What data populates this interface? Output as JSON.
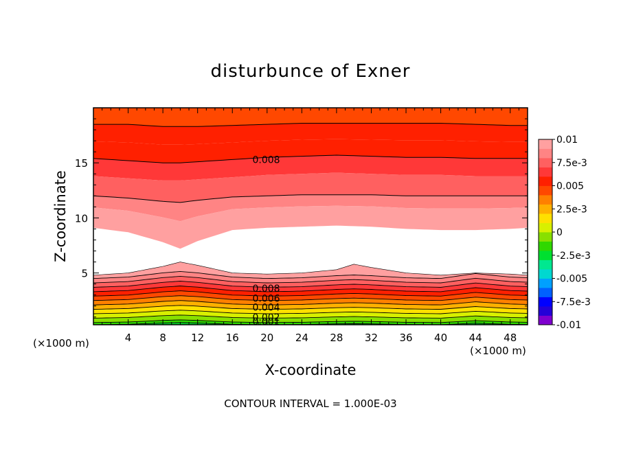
{
  "chart_data": {
    "type": "contour",
    "title": "disturbunce of Exner",
    "xlabel": "X-coordinate",
    "ylabel": "Z-coordinate",
    "x_unit_label_left": "(×1000 m)",
    "x_unit_label_right": "(×1000 m)",
    "xlim": [
      0,
      50
    ],
    "ylim": [
      0.3,
      20
    ],
    "x_ticks": [
      4,
      8,
      12,
      16,
      20,
      24,
      28,
      32,
      36,
      40,
      44,
      48
    ],
    "y_ticks": [
      5,
      10,
      15
    ],
    "footer": "CONTOUR INTERVAL = 1.000E-03",
    "contour_labels": [
      {
        "text": "0.008",
        "x": 18,
        "z": 15.3
      },
      {
        "text": "0.008",
        "x": 18,
        "z": 3.6
      },
      {
        "text": "0.006",
        "x": 18,
        "z": 2.7
      },
      {
        "text": "0.004",
        "x": 18,
        "z": 1.9
      },
      {
        "text": "0.002",
        "x": 18,
        "z": 1.0
      },
      {
        "text": "0.001",
        "x": 18,
        "z": 0.6
      }
    ],
    "colorbar": {
      "tick_labels": [
        "0.01",
        "7.5e-3",
        "0.005",
        "2.5e-3",
        "0",
        "-2.5e-3",
        "-0.005",
        "-7.5e-3",
        "-0.01"
      ],
      "range": [
        -0.01,
        0.01
      ],
      "colors": [
        "#7f00cf",
        "#2400d8",
        "#0000ff",
        "#0060ff",
        "#00a0ff",
        "#00d8d0",
        "#00e890",
        "#00e030",
        "#30d800",
        "#88e000",
        "#d8f000",
        "#ffe000",
        "#ffb000",
        "#ff8000",
        "#ff4800",
        "#ff2000",
        "#ff3838",
        "#ff6060",
        "#ff8484",
        "#ffa0a0"
      ]
    },
    "upper_region_profile": {
      "x": [
        0,
        4,
        8,
        10,
        12,
        16,
        20,
        24,
        28,
        32,
        36,
        40,
        44,
        48,
        50
      ],
      "white_bottom_z": [
        9.1,
        8.7,
        7.8,
        7.2,
        7.9,
        8.9,
        9.1,
        9.2,
        9.3,
        9.2,
        9.0,
        8.9,
        8.9,
        9.0,
        9.1
      ],
      "contour_008_z": [
        15.4,
        15.2,
        15.0,
        15.0,
        15.1,
        15.3,
        15.5,
        15.6,
        15.7,
        15.6,
        15.5,
        15.5,
        15.4,
        15.4,
        15.4
      ],
      "contour_009_z": [
        18.5,
        18.5,
        18.3,
        18.3,
        18.3,
        18.4,
        18.5,
        18.6,
        18.6,
        18.6,
        18.6,
        18.6,
        18.5,
        18.4,
        18.4
      ],
      "contour_007_z": [
        12.0,
        11.8,
        11.5,
        11.4,
        11.6,
        11.9,
        12.0,
        12.1,
        12.1,
        12.1,
        12.0,
        12.0,
        12.0,
        12.0,
        12.0
      ]
    },
    "lower_region_profile": {
      "x": [
        0,
        4,
        8,
        10,
        12,
        16,
        20,
        24,
        28,
        30,
        32,
        36,
        40,
        44,
        48,
        50
      ],
      "white_top_z": [
        4.8,
        5.0,
        5.6,
        6.0,
        5.7,
        5.0,
        4.9,
        5.0,
        5.3,
        5.8,
        5.5,
        5.0,
        4.8,
        5.0,
        4.9,
        4.8
      ],
      "bump_z": [
        0.0,
        0.1,
        0.4,
        0.5,
        0.4,
        0.1,
        0.0,
        0.05,
        0.2,
        0.25,
        0.2,
        0.05,
        0.0,
        0.35,
        0.1,
        0.05
      ],
      "level_base_z": [
        0.3,
        0.5,
        0.9,
        1.3,
        1.7,
        2.1,
        2.5,
        2.9,
        3.3,
        3.7,
        4.1,
        4.5
      ]
    }
  }
}
